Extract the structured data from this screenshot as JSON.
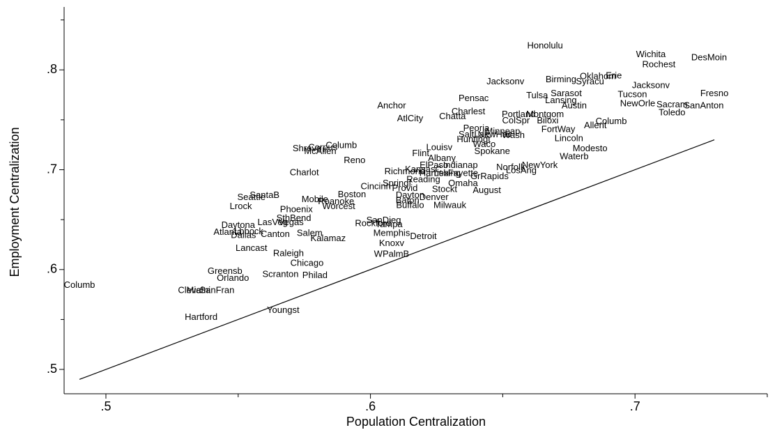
{
  "chart_data": {
    "type": "scatter",
    "x_label": "Population Centralization",
    "y_label": "Employment Centralization",
    "xlim": [
      0.4842,
      0.75
    ],
    "ylim": [
      0.4756,
      0.863
    ],
    "xticks": [
      {
        "value": 0.5,
        "label": ".5"
      },
      {
        "value": 0.6,
        "label": ".6"
      },
      {
        "value": 0.7,
        "label": ".7"
      }
    ],
    "yticks": [
      {
        "value": 0.5,
        "label": ".5"
      },
      {
        "value": 0.6,
        "label": ".6"
      },
      {
        "value": 0.7,
        "label": ".7"
      },
      {
        "value": 0.8,
        "label": ".8"
      }
    ],
    "xminor": [
      0.55,
      0.65,
      0.75
    ],
    "yminor": [
      0.55,
      0.65,
      0.75,
      0.85
    ],
    "color": "#000000",
    "reference_line": {
      "x": [
        0.49,
        0.73
      ],
      "y": [
        0.49,
        0.73
      ]
    },
    "labels": [
      "Honolulu",
      "Wichita",
      "DesMoin",
      "Rochest",
      "Jacksonv",
      "Birming",
      "Oklahom",
      "Erie",
      "Syracu",
      "Jacksonv",
      "Fresno",
      "Tucson",
      "Sarasot",
      "Tulsa",
      "Lansing",
      "Pensac",
      "Anchor",
      "Austin",
      "NewOrle",
      "Sacram",
      "SanAnton",
      "Toledo",
      "Charlest",
      "Chatta",
      "Portland",
      "Montgom",
      "ColSpr",
      "Biloxi",
      "AtlCity",
      "Columb",
      "Allent",
      "Peoria",
      "FortWay",
      "Minneap",
      "SaltLak",
      "NewHav",
      "Wash",
      "Huntingt",
      "Lincoln",
      "Waco",
      "Spokane",
      "Modesto",
      "Shreve",
      "Corpus",
      "McAllen",
      "Columb",
      "Louisv",
      "Flint",
      "Reno",
      "Waterb",
      "Albany",
      "ElPaso",
      "Indianap",
      "Norfolk",
      "NewYork",
      "LosAng",
      "Charlot",
      "Richmond",
      "KansasC",
      "Harrisb",
      "Lexing",
      "Fayette",
      "GrRapids",
      "Reading",
      "Springf",
      "Omaha",
      "Cincinn",
      "Provid",
      "Stockt",
      "August",
      "Boston",
      "SantaB",
      "Seattle",
      "Dayton",
      "Denver",
      "Baton",
      "Mobile",
      "Roanoke",
      "Worcest",
      "Buffalo",
      "Milwauk",
      "Lrock",
      "Phoenix",
      "SthBend",
      "Vegas",
      "LasVeg",
      "SanDieg",
      "Rockford",
      "Tampa",
      "Daytona",
      "Atlanta",
      "Lbbock",
      "Dallas",
      "Canton",
      "Salem",
      "Kalamaz",
      "Memphis",
      "Detroit",
      "Knoxv",
      "Lancast",
      "Raleigh",
      "WPalmB",
      "Chicago",
      "Greensb",
      "Orlando",
      "Scranton",
      "Philad",
      "Columb",
      "Clevel",
      "Miami",
      "SanFran",
      "Hartford",
      "Youngst"
    ],
    "x": [
      0.666,
      0.706,
      0.728,
      0.709,
      0.651,
      0.672,
      0.686,
      0.692,
      0.683,
      0.706,
      0.73,
      0.699,
      0.674,
      0.663,
      0.672,
      0.639,
      0.608,
      0.677,
      0.701,
      0.714,
      0.726,
      0.714,
      0.637,
      0.631,
      0.656,
      0.666,
      0.655,
      0.667,
      0.615,
      0.691,
      0.685,
      0.64,
      0.671,
      0.65,
      0.639,
      0.647,
      0.654,
      0.639,
      0.675,
      0.643,
      0.646,
      0.683,
      0.576,
      0.582,
      0.581,
      0.589,
      0.626,
      0.619,
      0.594,
      0.677,
      0.627,
      0.624,
      0.634,
      0.653,
      0.664,
      0.657,
      0.575,
      0.613,
      0.62,
      0.624,
      0.629,
      0.635,
      0.645,
      0.62,
      0.61,
      0.635,
      0.602,
      0.613,
      0.628,
      0.644,
      0.593,
      0.56,
      0.555,
      0.615,
      0.624,
      0.614,
      0.579,
      0.587,
      0.588,
      0.615,
      0.63,
      0.551,
      0.572,
      0.571,
      0.57,
      0.563,
      0.605,
      0.601,
      0.607,
      0.55,
      0.546,
      0.554,
      0.552,
      0.564,
      0.577,
      0.584,
      0.608,
      0.62,
      0.608,
      0.555,
      0.569,
      0.608,
      0.576,
      0.545,
      0.548,
      0.566,
      0.579,
      0.49,
      0.532,
      0.535,
      0.542,
      0.536,
      0.567
    ],
    "values": [
      0.824,
      0.815,
      0.812,
      0.805,
      0.788,
      0.79,
      0.793,
      0.794,
      0.788,
      0.784,
      0.776,
      0.775,
      0.776,
      0.774,
      0.769,
      0.771,
      0.764,
      0.764,
      0.766,
      0.765,
      0.764,
      0.757,
      0.758,
      0.753,
      0.755,
      0.755,
      0.749,
      0.749,
      0.751,
      0.748,
      0.744,
      0.741,
      0.74,
      0.738,
      0.735,
      0.735,
      0.734,
      0.73,
      0.731,
      0.725,
      0.718,
      0.721,
      0.721,
      0.722,
      0.718,
      0.724,
      0.722,
      0.716,
      0.709,
      0.713,
      0.711,
      0.704,
      0.704,
      0.702,
      0.704,
      0.699,
      0.697,
      0.698,
      0.7,
      0.696,
      0.696,
      0.696,
      0.693,
      0.69,
      0.686,
      0.686,
      0.683,
      0.681,
      0.68,
      0.679,
      0.675,
      0.674,
      0.672,
      0.674,
      0.672,
      0.669,
      0.67,
      0.668,
      0.663,
      0.664,
      0.664,
      0.663,
      0.66,
      0.651,
      0.647,
      0.647,
      0.649,
      0.646,
      0.645,
      0.644,
      0.637,
      0.638,
      0.634,
      0.635,
      0.636,
      0.631,
      0.636,
      0.633,
      0.626,
      0.621,
      0.616,
      0.615,
      0.606,
      0.598,
      0.591,
      0.595,
      0.594,
      0.584,
      0.579,
      0.579,
      0.579,
      0.552,
      0.559
    ]
  }
}
